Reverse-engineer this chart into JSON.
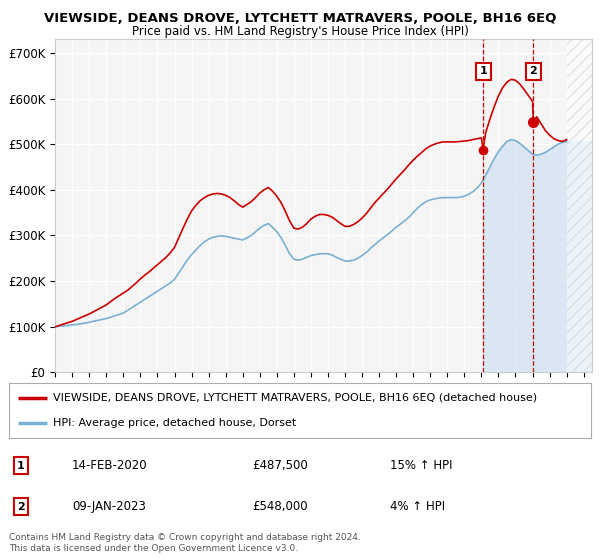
{
  "title": "VIEWSIDE, DEANS DROVE, LYTCHETT MATRAVERS, POOLE, BH16 6EQ",
  "subtitle": "Price paid vs. HM Land Registry's House Price Index (HPI)",
  "ylabel_ticks": [
    "£0",
    "£100K",
    "£200K",
    "£300K",
    "£400K",
    "£500K",
    "£600K",
    "£700K"
  ],
  "ytick_vals": [
    0,
    100000,
    200000,
    300000,
    400000,
    500000,
    600000,
    700000
  ],
  "ylim": [
    0,
    730000
  ],
  "xlim_start": 1995.0,
  "xlim_end": 2026.5,
  "red_color": "#cc0000",
  "blue_color": "#7ab0d4",
  "blue_fill_color": "#c8dff0",
  "bg_plot": "#f5f5f5",
  "bg_fig": "#ffffff",
  "marker1_x": 2020.1,
  "marker1_y": 487500,
  "marker2_x": 2023.05,
  "marker2_y": 548000,
  "legend_label_red": "VIEWSIDE, DEANS DROVE, LYTCHETT MATRAVERS, POOLE, BH16 6EQ (detached house)",
  "legend_label_blue": "HPI: Average price, detached house, Dorset",
  "table_rows": [
    {
      "num": "1",
      "date": "14-FEB-2020",
      "price": "£487,500",
      "change": "15% ↑ HPI"
    },
    {
      "num": "2",
      "date": "09-JAN-2023",
      "price": "£548,000",
      "change": "4% ↑ HPI"
    }
  ],
  "footer": "Contains HM Land Registry data © Crown copyright and database right 2024.\nThis data is licensed under the Open Government Licence v3.0.",
  "hpi_years": [
    1995,
    1995.25,
    1995.5,
    1995.75,
    1996,
    1996.25,
    1996.5,
    1996.75,
    1997,
    1997.25,
    1997.5,
    1997.75,
    1998,
    1998.25,
    1998.5,
    1998.75,
    1999,
    1999.25,
    1999.5,
    1999.75,
    2000,
    2000.25,
    2000.5,
    2000.75,
    2001,
    2001.25,
    2001.5,
    2001.75,
    2002,
    2002.25,
    2002.5,
    2002.75,
    2003,
    2003.25,
    2003.5,
    2003.75,
    2004,
    2004.25,
    2004.5,
    2004.75,
    2005,
    2005.25,
    2005.5,
    2005.75,
    2006,
    2006.25,
    2006.5,
    2006.75,
    2007,
    2007.25,
    2007.5,
    2007.75,
    2008,
    2008.25,
    2008.5,
    2008.75,
    2009,
    2009.25,
    2009.5,
    2009.75,
    2010,
    2010.25,
    2010.5,
    2010.75,
    2011,
    2011.25,
    2011.5,
    2011.75,
    2012,
    2012.25,
    2012.5,
    2012.75,
    2013,
    2013.25,
    2013.5,
    2013.75,
    2014,
    2014.25,
    2014.5,
    2014.75,
    2015,
    2015.25,
    2015.5,
    2015.75,
    2016,
    2016.25,
    2016.5,
    2016.75,
    2017,
    2017.25,
    2017.5,
    2017.75,
    2018,
    2018.25,
    2018.5,
    2018.75,
    2019,
    2019.25,
    2019.5,
    2019.75,
    2020,
    2020.25,
    2020.5,
    2020.75,
    2021,
    2021.25,
    2021.5,
    2021.75,
    2022,
    2022.25,
    2022.5,
    2022.75,
    2023,
    2023.25,
    2023.5,
    2023.75,
    2024,
    2024.25,
    2024.5,
    2024.75,
    2025
  ],
  "hpi_values": [
    100000,
    101000,
    102000,
    103000,
    104000,
    105000,
    106500,
    108000,
    110000,
    112000,
    114000,
    116000,
    118000,
    121000,
    124000,
    127000,
    130000,
    136000,
    142000,
    148000,
    154000,
    160000,
    166000,
    172000,
    178000,
    184000,
    190000,
    196000,
    204000,
    218000,
    232000,
    246000,
    258000,
    268000,
    278000,
    286000,
    292000,
    296000,
    298000,
    299000,
    298000,
    296000,
    294000,
    292000,
    290000,
    295000,
    300000,
    308000,
    316000,
    322000,
    326000,
    318000,
    308000,
    295000,
    278000,
    260000,
    248000,
    246000,
    248000,
    252000,
    256000,
    258000,
    260000,
    260000,
    260000,
    257000,
    252000,
    248000,
    244000,
    244000,
    246000,
    250000,
    256000,
    263000,
    272000,
    280000,
    288000,
    295000,
    302000,
    310000,
    318000,
    325000,
    332000,
    340000,
    350000,
    360000,
    368000,
    374000,
    378000,
    380000,
    382000,
    383000,
    383000,
    383000,
    383000,
    384000,
    386000,
    390000,
    396000,
    404000,
    415000,
    432000,
    450000,
    468000,
    484000,
    496000,
    506000,
    510000,
    508000,
    502000,
    494000,
    486000,
    478000,
    476000,
    478000,
    482000,
    488000,
    494000,
    500000,
    504000,
    506000
  ],
  "red_years": [
    1995,
    1995.25,
    1995.5,
    1995.75,
    1996,
    1996.25,
    1996.5,
    1996.75,
    1997,
    1997.25,
    1997.5,
    1997.75,
    1998,
    1998.25,
    1998.5,
    1998.75,
    1999,
    1999.25,
    1999.5,
    1999.75,
    2000,
    2000.25,
    2000.5,
    2000.75,
    2001,
    2001.25,
    2001.5,
    2001.75,
    2002,
    2002.25,
    2002.5,
    2002.75,
    2003,
    2003.25,
    2003.5,
    2003.75,
    2004,
    2004.25,
    2004.5,
    2004.75,
    2005,
    2005.25,
    2005.5,
    2005.75,
    2006,
    2006.25,
    2006.5,
    2006.75,
    2007,
    2007.25,
    2007.5,
    2007.75,
    2008,
    2008.25,
    2008.5,
    2008.75,
    2009,
    2009.25,
    2009.5,
    2009.75,
    2010,
    2010.25,
    2010.5,
    2010.75,
    2011,
    2011.25,
    2011.5,
    2011.75,
    2012,
    2012.25,
    2012.5,
    2012.75,
    2013,
    2013.25,
    2013.5,
    2013.75,
    2014,
    2014.25,
    2014.5,
    2014.75,
    2015,
    2015.25,
    2015.5,
    2015.75,
    2016,
    2016.25,
    2016.5,
    2016.75,
    2017,
    2017.25,
    2017.5,
    2017.75,
    2018,
    2018.25,
    2018.5,
    2018.75,
    2019,
    2019.25,
    2019.5,
    2019.75,
    2020,
    2020.1,
    2020.25,
    2020.5,
    2020.75,
    2021,
    2021.25,
    2021.5,
    2021.75,
    2022,
    2022.25,
    2022.5,
    2022.75,
    2023,
    2023.05,
    2023.25,
    2023.5,
    2023.75,
    2024,
    2024.25,
    2024.5,
    2024.75,
    2025
  ],
  "red_values": [
    100000,
    103000,
    106000,
    109000,
    112000,
    116000,
    120000,
    124000,
    128000,
    133000,
    138000,
    143000,
    148000,
    155000,
    162000,
    168000,
    174000,
    180000,
    188000,
    196000,
    205000,
    213000,
    220000,
    228000,
    236000,
    244000,
    252000,
    262000,
    274000,
    295000,
    316000,
    336000,
    354000,
    366000,
    376000,
    383000,
    388000,
    391000,
    392000,
    391000,
    388000,
    383000,
    376000,
    368000,
    362000,
    368000,
    374000,
    383000,
    393000,
    400000,
    405000,
    397000,
    386000,
    372000,
    353000,
    332000,
    316000,
    314000,
    318000,
    326000,
    336000,
    342000,
    346000,
    346000,
    344000,
    340000,
    333000,
    326000,
    320000,
    320000,
    324000,
    330000,
    338000,
    348000,
    360000,
    372000,
    382000,
    392000,
    402000,
    413000,
    424000,
    434000,
    444000,
    455000,
    465000,
    474000,
    482000,
    490000,
    496000,
    500000,
    503000,
    505000,
    505000,
    505000,
    505000,
    506000,
    507000,
    508000,
    510000,
    512000,
    514000,
    487500,
    525000,
    555000,
    582000,
    606000,
    624000,
    636000,
    642000,
    640000,
    632000,
    620000,
    607000,
    594000,
    548000,
    560000,
    545000,
    530000,
    520000,
    512000,
    508000,
    506000,
    510000
  ]
}
